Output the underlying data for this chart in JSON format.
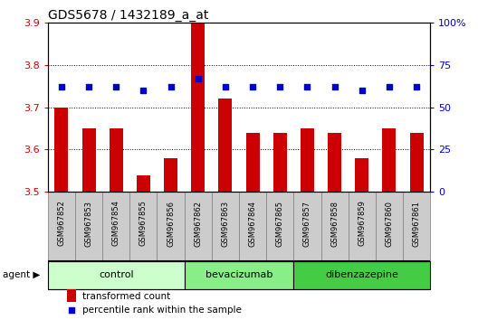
{
  "title": "GDS5678 / 1432189_a_at",
  "samples": [
    "GSM967852",
    "GSM967853",
    "GSM967854",
    "GSM967855",
    "GSM967856",
    "GSM967862",
    "GSM967863",
    "GSM967864",
    "GSM967865",
    "GSM967857",
    "GSM967858",
    "GSM967859",
    "GSM967860",
    "GSM967861"
  ],
  "transformed_count": [
    3.7,
    3.65,
    3.65,
    3.54,
    3.58,
    3.9,
    3.72,
    3.64,
    3.64,
    3.65,
    3.64,
    3.58,
    3.65,
    3.64
  ],
  "percentile_rank": [
    62,
    62,
    62,
    60,
    62,
    67,
    62,
    62,
    62,
    62,
    62,
    60,
    62,
    62
  ],
  "ylim_left": [
    3.5,
    3.9
  ],
  "ylim_right": [
    0,
    100
  ],
  "yticks_left": [
    3.5,
    3.6,
    3.7,
    3.8,
    3.9
  ],
  "yticks_right": [
    0,
    25,
    50,
    75,
    100
  ],
  "ytick_labels_right": [
    "0",
    "25",
    "50",
    "75",
    "100%"
  ],
  "groups": [
    {
      "label": "control",
      "start": 0,
      "end": 5,
      "color": "#ccffcc"
    },
    {
      "label": "bevacizumab",
      "start": 5,
      "end": 9,
      "color": "#88ee88"
    },
    {
      "label": "dibenzazepine",
      "start": 9,
      "end": 14,
      "color": "#44cc44"
    }
  ],
  "bar_color": "#cc0000",
  "dot_color": "#0000cc",
  "bar_width": 0.5,
  "background_color": "#ffffff",
  "plot_bg_color": "#ffffff",
  "label_color_left": "#cc0000",
  "label_color_right": "#0000cc",
  "agent_label": "agent",
  "legend_bar_label": "transformed count",
  "legend_dot_label": "percentile rank within the sample",
  "sample_box_color": "#cccccc",
  "sample_box_border": "#888888"
}
